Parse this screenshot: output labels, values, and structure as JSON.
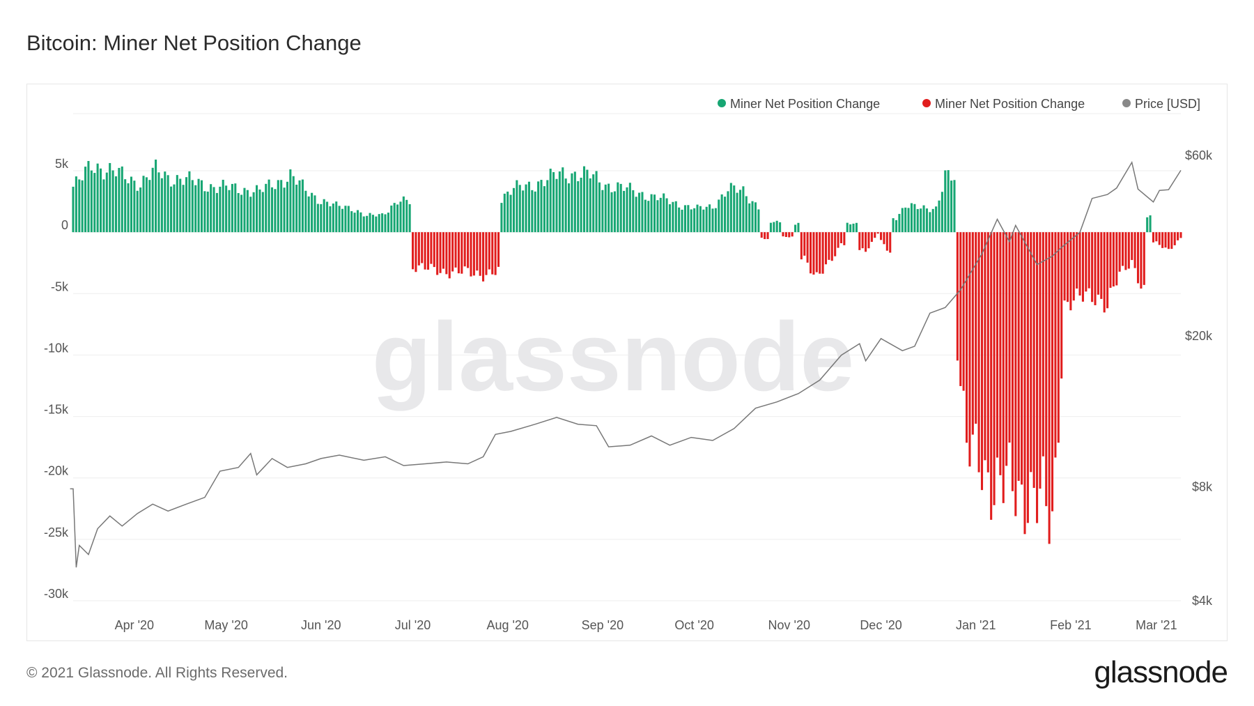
{
  "title": "Bitcoin: Miner Net Position Change",
  "footer": "© 2021 Glassnode. All Rights Reserved.",
  "logo": "glassnode",
  "watermark": "glassnode",
  "colors": {
    "positive": "#17a673",
    "negative": "#e11d1d",
    "price": "#777777",
    "grid": "#eeeeee"
  },
  "legend": [
    {
      "label": "Miner Net Position Change",
      "color": "#17a673"
    },
    {
      "label": "Miner Net Position Change",
      "color": "#e11d1d"
    },
    {
      "label": "Price [USD]",
      "color": "#888888"
    }
  ],
  "chart_data": {
    "type": "bar",
    "x_start": "2020-03-12",
    "x_end": "2021-03-09",
    "x_tick_labels": [
      {
        "label": "Apr '20",
        "date": "2020-04-01"
      },
      {
        "label": "May '20",
        "date": "2020-05-01"
      },
      {
        "label": "Jun '20",
        "date": "2020-06-01"
      },
      {
        "label": "Jul '20",
        "date": "2020-07-01"
      },
      {
        "label": "Aug '20",
        "date": "2020-08-01"
      },
      {
        "label": "Sep '20",
        "date": "2020-09-01"
      },
      {
        "label": "Oct '20",
        "date": "2020-10-01"
      },
      {
        "label": "Nov '20",
        "date": "2020-11-01"
      },
      {
        "label": "Dec '20",
        "date": "2020-12-01"
      },
      {
        "label": "Jan '21",
        "date": "2021-01-01"
      },
      {
        "label": "Feb '21",
        "date": "2021-02-01"
      },
      {
        "label": "Mar '21",
        "date": "2021-03-01"
      }
    ],
    "y_left": {
      "min": -30000,
      "max": 5000,
      "ticks": [
        5000,
        0,
        -5000,
        -10000,
        -15000,
        -20000,
        -25000,
        -30000
      ],
      "tick_labels": [
        "5k",
        "0",
        "-5k",
        "-10k",
        "-15k",
        "-20k",
        "-25k",
        "-30k"
      ]
    },
    "y_right": {
      "scale": "log",
      "ticks": [
        60000,
        20000,
        8000,
        4000
      ],
      "tick_labels": [
        "$60k",
        "$20k",
        "$8k",
        "$4k"
      ]
    },
    "series": [
      {
        "name": "Miner Net Position Change",
        "axis": "left",
        "points": [
          [
            "2020-03-12",
            3700
          ],
          [
            "2020-03-15",
            4400
          ],
          [
            "2020-03-18",
            5500
          ],
          [
            "2020-03-21",
            5300
          ],
          [
            "2020-03-25",
            4900
          ],
          [
            "2020-03-30",
            4400
          ],
          [
            "2020-04-03",
            4000
          ],
          [
            "2020-04-08",
            5000
          ],
          [
            "2020-04-12",
            4500
          ],
          [
            "2020-04-17",
            4300
          ],
          [
            "2020-04-22",
            4000
          ],
          [
            "2020-04-27",
            3700
          ],
          [
            "2020-05-02",
            3600
          ],
          [
            "2020-05-07",
            3500
          ],
          [
            "2020-05-12",
            3300
          ],
          [
            "2020-05-17",
            4000
          ],
          [
            "2020-05-22",
            4600
          ],
          [
            "2020-05-27",
            3400
          ],
          [
            "2020-06-01",
            2600
          ],
          [
            "2020-06-06",
            2100
          ],
          [
            "2020-06-11",
            2000
          ],
          [
            "2020-06-16",
            1300
          ],
          [
            "2020-06-21",
            1400
          ],
          [
            "2020-06-26",
            2600
          ],
          [
            "2020-06-30",
            2400
          ],
          [
            "2020-07-01",
            -2800
          ],
          [
            "2020-07-05",
            -3000
          ],
          [
            "2020-07-10",
            -3100
          ],
          [
            "2020-07-15",
            -3300
          ],
          [
            "2020-07-20",
            -3300
          ],
          [
            "2020-07-25",
            -3400
          ],
          [
            "2020-07-29",
            -3300
          ],
          [
            "2020-07-30",
            2800
          ],
          [
            "2020-08-03",
            3500
          ],
          [
            "2020-08-08",
            3800
          ],
          [
            "2020-08-13",
            4200
          ],
          [
            "2020-08-18",
            4700
          ],
          [
            "2020-08-23",
            4800
          ],
          [
            "2020-08-28",
            4600
          ],
          [
            "2020-09-02",
            3900
          ],
          [
            "2020-09-07",
            3600
          ],
          [
            "2020-09-12",
            3300
          ],
          [
            "2020-09-17",
            2900
          ],
          [
            "2020-09-22",
            2600
          ],
          [
            "2020-09-27",
            2200
          ],
          [
            "2020-10-02",
            1900
          ],
          [
            "2020-10-07",
            2100
          ],
          [
            "2020-10-12",
            3500
          ],
          [
            "2020-10-17",
            3300
          ],
          [
            "2020-10-22",
            2100
          ],
          [
            "2020-10-24",
            -500
          ],
          [
            "2020-10-28",
            800
          ],
          [
            "2020-11-01",
            -400
          ],
          [
            "2020-11-04",
            700
          ],
          [
            "2020-11-06",
            -2000
          ],
          [
            "2020-11-10",
            -3700
          ],
          [
            "2020-11-14",
            -2700
          ],
          [
            "2020-11-18",
            -900
          ],
          [
            "2020-11-22",
            700
          ],
          [
            "2020-11-26",
            -1600
          ],
          [
            "2020-11-30",
            -100
          ],
          [
            "2020-12-03",
            -1500
          ],
          [
            "2020-12-06",
            1200
          ],
          [
            "2020-12-09",
            2200
          ],
          [
            "2020-12-14",
            1900
          ],
          [
            "2020-12-19",
            2000
          ],
          [
            "2020-12-22",
            4600
          ],
          [
            "2020-12-25",
            4200
          ],
          [
            "2020-12-26",
            -9000
          ],
          [
            "2020-12-29",
            -18000
          ],
          [
            "2021-01-03",
            -18800
          ],
          [
            "2021-01-07",
            -20400
          ],
          [
            "2021-01-11",
            -20800
          ],
          [
            "2021-01-15",
            -21200
          ],
          [
            "2021-01-19",
            -21000
          ],
          [
            "2021-01-23",
            -22500
          ],
          [
            "2021-01-26",
            -24200
          ],
          [
            "2021-01-28",
            -15000
          ],
          [
            "2021-01-30",
            -5800
          ],
          [
            "2021-02-03",
            -5600
          ],
          [
            "2021-02-07",
            -5100
          ],
          [
            "2021-02-10",
            -5200
          ],
          [
            "2021-02-13",
            -6000
          ],
          [
            "2021-02-17",
            -3500
          ],
          [
            "2021-02-21",
            -2300
          ],
          [
            "2021-02-25",
            -4900
          ],
          [
            "2021-02-27",
            1300
          ],
          [
            "2021-03-01",
            -900
          ],
          [
            "2021-03-05",
            -1400
          ],
          [
            "2021-03-09",
            -500
          ]
        ]
      },
      {
        "name": "Price [USD]",
        "axis": "right",
        "points": [
          [
            "2020-03-11",
            7900
          ],
          [
            "2020-03-12",
            7900
          ],
          [
            "2020-03-13",
            4900
          ],
          [
            "2020-03-14",
            5600
          ],
          [
            "2020-03-17",
            5300
          ],
          [
            "2020-03-20",
            6200
          ],
          [
            "2020-03-24",
            6700
          ],
          [
            "2020-03-28",
            6300
          ],
          [
            "2020-04-02",
            6800
          ],
          [
            "2020-04-07",
            7200
          ],
          [
            "2020-04-12",
            6900
          ],
          [
            "2020-04-18",
            7200
          ],
          [
            "2020-04-24",
            7500
          ],
          [
            "2020-04-29",
            8800
          ],
          [
            "2020-05-05",
            9000
          ],
          [
            "2020-05-09",
            9800
          ],
          [
            "2020-05-11",
            8600
          ],
          [
            "2020-05-16",
            9500
          ],
          [
            "2020-05-21",
            9000
          ],
          [
            "2020-05-27",
            9200
          ],
          [
            "2020-06-01",
            9500
          ],
          [
            "2020-06-07",
            9700
          ],
          [
            "2020-06-15",
            9400
          ],
          [
            "2020-06-22",
            9600
          ],
          [
            "2020-06-28",
            9100
          ],
          [
            "2020-07-05",
            9200
          ],
          [
            "2020-07-12",
            9300
          ],
          [
            "2020-07-19",
            9200
          ],
          [
            "2020-07-24",
            9600
          ],
          [
            "2020-07-28",
            11000
          ],
          [
            "2020-08-02",
            11200
          ],
          [
            "2020-08-10",
            11700
          ],
          [
            "2020-08-17",
            12200
          ],
          [
            "2020-08-24",
            11700
          ],
          [
            "2020-08-30",
            11600
          ],
          [
            "2020-09-03",
            10200
          ],
          [
            "2020-09-10",
            10300
          ],
          [
            "2020-09-17",
            10900
          ],
          [
            "2020-09-23",
            10300
          ],
          [
            "2020-09-30",
            10800
          ],
          [
            "2020-10-07",
            10600
          ],
          [
            "2020-10-14",
            11400
          ],
          [
            "2020-10-21",
            12900
          ],
          [
            "2020-10-28",
            13400
          ],
          [
            "2020-11-04",
            14100
          ],
          [
            "2020-11-11",
            15300
          ],
          [
            "2020-11-18",
            17800
          ],
          [
            "2020-11-24",
            19100
          ],
          [
            "2020-11-26",
            17200
          ],
          [
            "2020-12-01",
            19700
          ],
          [
            "2020-12-08",
            18300
          ],
          [
            "2020-12-12",
            18800
          ],
          [
            "2020-12-17",
            23000
          ],
          [
            "2020-12-22",
            23800
          ],
          [
            "2020-12-27",
            26500
          ],
          [
            "2021-01-03",
            33000
          ],
          [
            "2021-01-08",
            40700
          ],
          [
            "2021-01-12",
            35500
          ],
          [
            "2021-01-14",
            39200
          ],
          [
            "2021-01-21",
            30900
          ],
          [
            "2021-01-26",
            32500
          ],
          [
            "2021-01-29",
            34300
          ],
          [
            "2021-02-04",
            37600
          ],
          [
            "2021-02-08",
            46200
          ],
          [
            "2021-02-13",
            47300
          ],
          [
            "2021-02-16",
            49200
          ],
          [
            "2021-02-21",
            57500
          ],
          [
            "2021-02-23",
            48900
          ],
          [
            "2021-02-28",
            45200
          ],
          [
            "2021-03-02",
            48500
          ],
          [
            "2021-03-05",
            48700
          ],
          [
            "2021-03-09",
            54800
          ]
        ]
      }
    ]
  }
}
